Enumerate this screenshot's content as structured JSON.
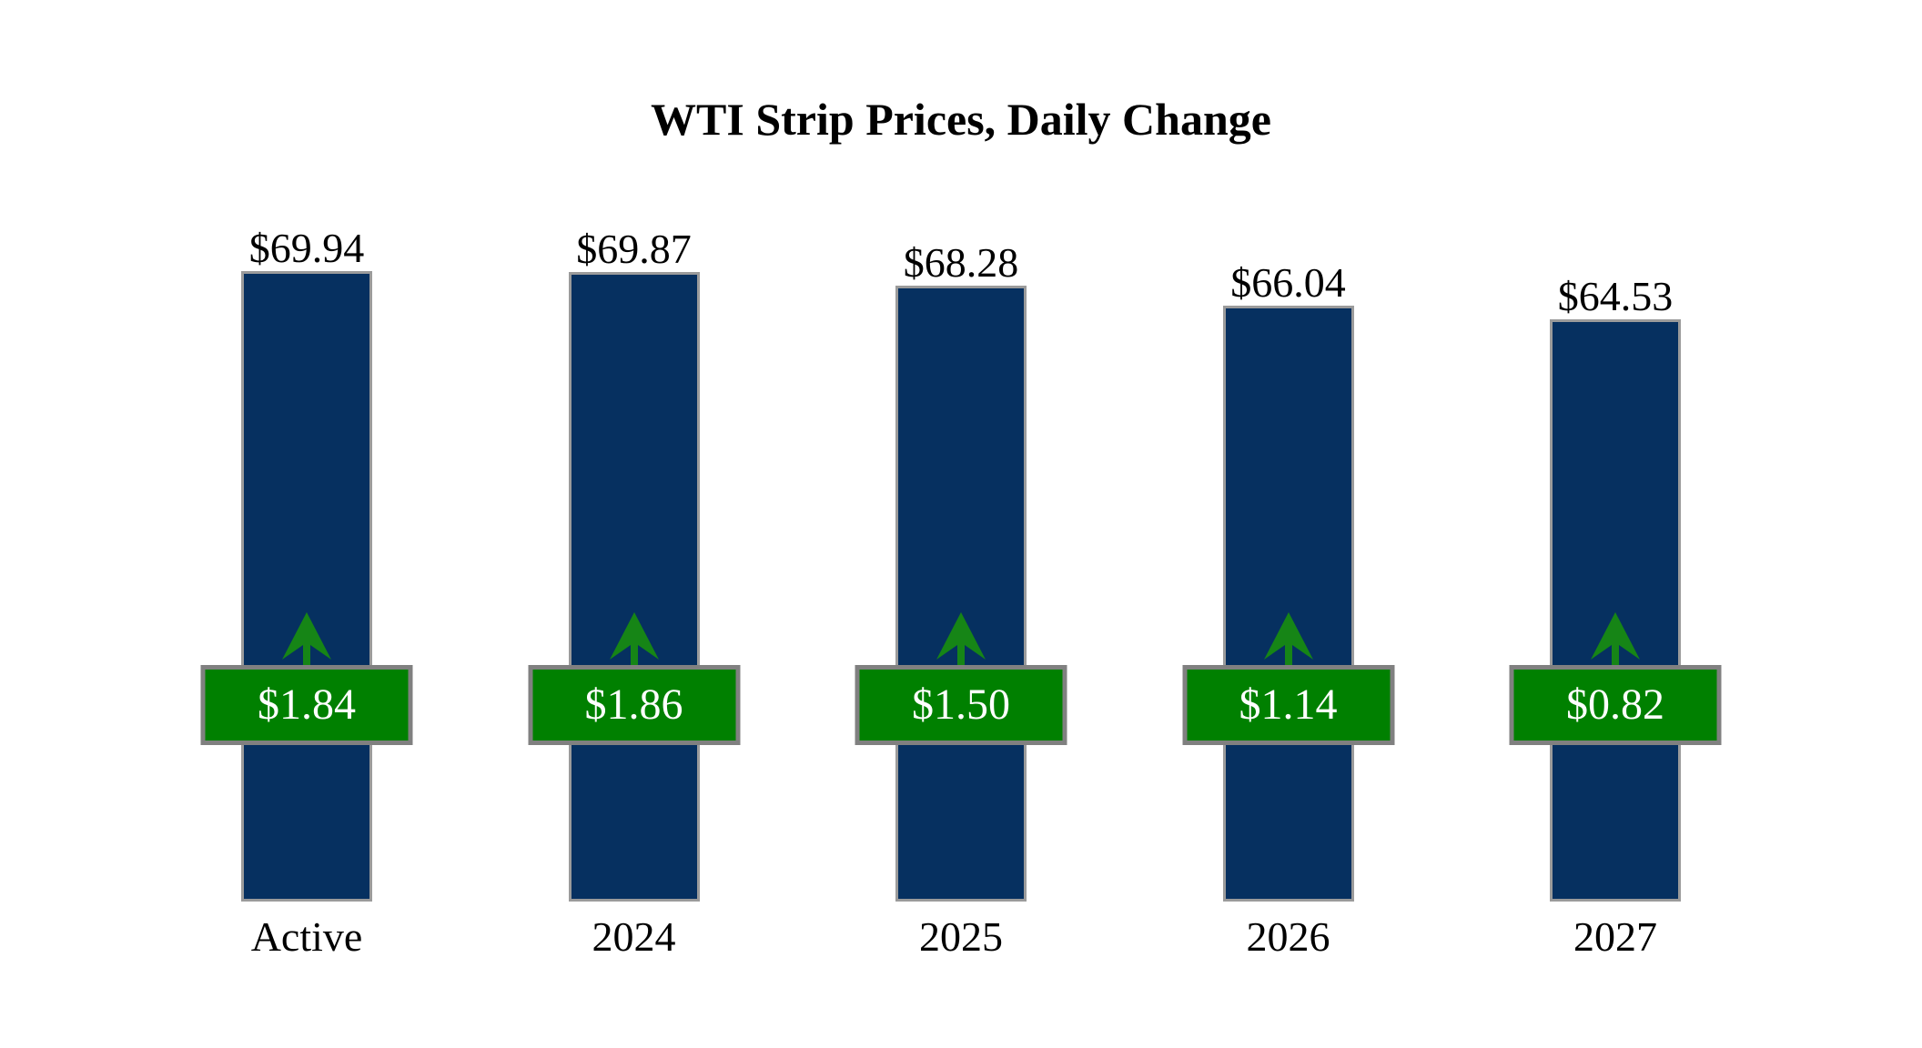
{
  "title": "WTI Strip Prices, Daily Change",
  "colors": {
    "background": "#FFFFFF",
    "bar_fill": "#063060",
    "bar_border": "#9B9B9B",
    "badge_fill": "#008000",
    "badge_border": "#808080",
    "badge_text": "#FFFFFF",
    "arrow": "#168516",
    "text": "#000000"
  },
  "chart_data": {
    "type": "bar",
    "title": "WTI Strip Prices, Daily Change",
    "categories": [
      "Active",
      "2024",
      "2025",
      "2026",
      "2027"
    ],
    "series": [
      {
        "name": "Strip Price",
        "values": [
          69.94,
          69.87,
          68.28,
          66.04,
          64.53
        ],
        "labels": [
          "$69.94",
          "$69.87",
          "$68.28",
          "$66.04",
          "$64.53"
        ]
      },
      {
        "name": "Daily Change",
        "values": [
          1.84,
          1.86,
          1.5,
          1.14,
          0.82
        ],
        "labels": [
          "$1.84",
          "$1.86",
          "$1.50",
          "$1.14",
          "$0.82"
        ],
        "direction": "up"
      }
    ],
    "ylim": [
      0,
      72
    ],
    "grid": false,
    "legend": false,
    "axes_visible": false
  }
}
